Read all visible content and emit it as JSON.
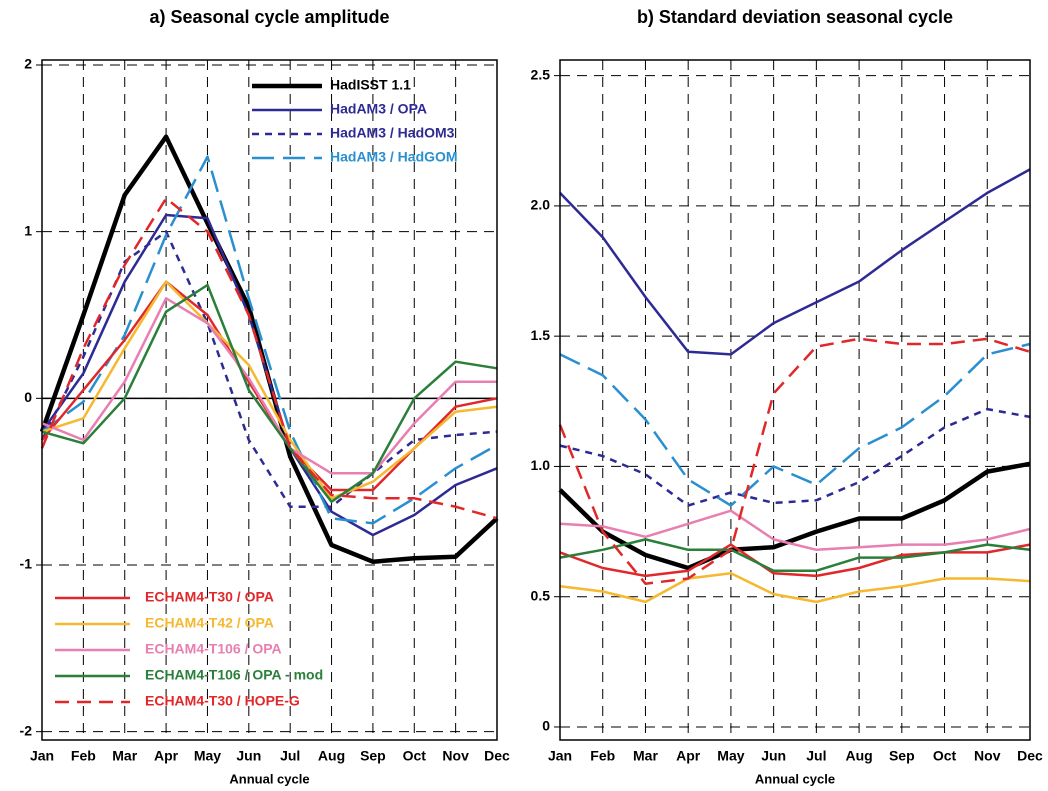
{
  "chart_data": [
    {
      "type": "line",
      "title": "a) Seasonal cycle amplitude",
      "xlabel": "Annual cycle",
      "categories": [
        "Jan",
        "Feb",
        "Mar",
        "Apr",
        "May",
        "Jun",
        "Jul",
        "Aug",
        "Sep",
        "Oct",
        "Nov",
        "Dec"
      ],
      "ylim": [
        -2.05,
        2.03
      ],
      "yticks": [
        -2,
        -1,
        0,
        1,
        2
      ],
      "grid": true,
      "zero_line": true,
      "series": [
        {
          "name": "HadISST 1.1",
          "color": "#000000",
          "dash": "solid",
          "width": 4.5,
          "legend": "upper right",
          "values": [
            -0.2,
            0.5,
            1.22,
            1.57,
            1.05,
            0.55,
            -0.35,
            -0.88,
            -0.98,
            -0.96,
            -0.95,
            -0.72
          ]
        },
        {
          "name": "HadAM3 / OPA",
          "color": "#2e2a94",
          "dash": "solid",
          "width": 2.5,
          "legend": "upper right",
          "values": [
            -0.2,
            0.15,
            0.7,
            1.1,
            1.08,
            0.5,
            -0.3,
            -0.68,
            -0.82,
            -0.7,
            -0.52,
            -0.42
          ]
        },
        {
          "name": "HadAM3 / HadOM3",
          "color": "#2e2a94",
          "dash": "short",
          "width": 2.5,
          "legend": "upper right",
          "values": [
            -0.25,
            0.25,
            0.82,
            1.0,
            0.45,
            -0.25,
            -0.65,
            -0.65,
            -0.45,
            -0.25,
            -0.22,
            -0.2
          ]
        },
        {
          "name": "HadAM3 / HadGOM",
          "color": "#2a8fd0",
          "dash": "long",
          "width": 2.5,
          "legend": "upper right",
          "values": [
            -0.2,
            -0.02,
            0.38,
            0.98,
            1.45,
            0.6,
            -0.2,
            -0.72,
            -0.75,
            -0.6,
            -0.42,
            -0.28
          ]
        },
        {
          "name": "ECHAM4-T30 / OPA",
          "color": "#e0282a",
          "dash": "solid",
          "width": 2.5,
          "legend": "lower left",
          "values": [
            -0.25,
            0.05,
            0.35,
            0.7,
            0.5,
            0.1,
            -0.3,
            -0.55,
            -0.55,
            -0.3,
            -0.05,
            0.0
          ]
        },
        {
          "name": "ECHAM4-T42 / OPA",
          "color": "#f5b82e",
          "dash": "solid",
          "width": 2.5,
          "legend": "lower left",
          "values": [
            -0.2,
            -0.12,
            0.3,
            0.7,
            0.45,
            0.2,
            -0.25,
            -0.6,
            -0.5,
            -0.3,
            -0.08,
            -0.05
          ]
        },
        {
          "name": "ECHAM4-T106 / OPA",
          "color": "#e87fb0",
          "dash": "solid",
          "width": 2.5,
          "legend": "lower left",
          "values": [
            -0.15,
            -0.25,
            0.1,
            0.6,
            0.45,
            0.12,
            -0.3,
            -0.45,
            -0.45,
            -0.15,
            0.1,
            0.1
          ]
        },
        {
          "name": "ECHAM4-T106 / OPA - mod",
          "color": "#2a7f3a",
          "dash": "solid",
          "width": 2.5,
          "legend": "lower left",
          "values": [
            -0.2,
            -0.27,
            0.0,
            0.52,
            0.68,
            0.05,
            -0.3,
            -0.62,
            -0.45,
            0.0,
            0.22,
            0.18
          ]
        },
        {
          "name": "ECHAM4-T30 / HOPE-G",
          "color": "#e0282a",
          "dash": "medium",
          "width": 2.5,
          "legend": "lower left",
          "values": [
            -0.3,
            0.3,
            0.8,
            1.2,
            1.0,
            0.5,
            -0.3,
            -0.58,
            -0.6,
            -0.6,
            -0.65,
            -0.72
          ]
        }
      ]
    },
    {
      "type": "line",
      "title": "b) Standard deviation seasonal cycle",
      "xlabel": "Annual cycle",
      "categories": [
        "Jan",
        "Feb",
        "Mar",
        "Apr",
        "May",
        "Jun",
        "Jul",
        "Aug",
        "Sep",
        "Oct",
        "Nov",
        "Dec"
      ],
      "ylim": [
        -0.05,
        2.56
      ],
      "yticks": [
        0,
        0.5,
        {
          "value": 1,
          "label": "1.0"
        },
        1.5,
        {
          "value": 2,
          "label": "2.0"
        },
        2.5
      ],
      "grid": true,
      "zero_line": false,
      "series": [
        {
          "color": "#000000",
          "dash": "solid",
          "width": 4.5,
          "values": [
            0.91,
            0.75,
            0.66,
            0.61,
            0.68,
            0.69,
            0.75,
            0.8,
            0.8,
            0.87,
            0.98,
            1.01
          ]
        },
        {
          "color": "#2e2a94",
          "dash": "solid",
          "width": 2.5,
          "values": [
            2.05,
            1.88,
            1.65,
            1.44,
            1.43,
            1.55,
            1.63,
            1.71,
            1.83,
            1.94,
            2.05,
            2.14
          ]
        },
        {
          "color": "#2e2a94",
          "dash": "short",
          "width": 2.5,
          "values": [
            1.08,
            1.04,
            0.97,
            0.85,
            0.9,
            0.86,
            0.87,
            0.94,
            1.04,
            1.15,
            1.22,
            1.19
          ]
        },
        {
          "color": "#2a8fd0",
          "dash": "long",
          "width": 2.5,
          "values": [
            1.43,
            1.35,
            1.18,
            0.95,
            0.85,
            1.0,
            0.93,
            1.07,
            1.15,
            1.27,
            1.43,
            1.47
          ]
        },
        {
          "color": "#e0282a",
          "dash": "solid",
          "width": 2.5,
          "values": [
            0.67,
            0.61,
            0.58,
            0.6,
            0.7,
            0.59,
            0.58,
            0.61,
            0.66,
            0.67,
            0.67,
            0.7
          ]
        },
        {
          "color": "#f5b82e",
          "dash": "solid",
          "width": 2.5,
          "values": [
            0.54,
            0.52,
            0.48,
            0.57,
            0.59,
            0.51,
            0.48,
            0.52,
            0.54,
            0.57,
            0.57,
            0.56
          ]
        },
        {
          "color": "#e87fb0",
          "dash": "solid",
          "width": 2.5,
          "values": [
            0.78,
            0.77,
            0.73,
            0.78,
            0.83,
            0.72,
            0.68,
            0.69,
            0.7,
            0.7,
            0.72,
            0.76
          ]
        },
        {
          "color": "#2a7f3a",
          "dash": "solid",
          "width": 2.5,
          "values": [
            0.65,
            0.68,
            0.72,
            0.68,
            0.68,
            0.6,
            0.6,
            0.65,
            0.65,
            0.67,
            0.7,
            0.68
          ]
        },
        {
          "color": "#e0282a",
          "dash": "medium",
          "width": 2.5,
          "values": [
            1.16,
            0.75,
            0.55,
            0.57,
            0.68,
            1.28,
            1.46,
            1.49,
            1.47,
            1.47,
            1.49,
            1.44
          ]
        }
      ]
    }
  ]
}
